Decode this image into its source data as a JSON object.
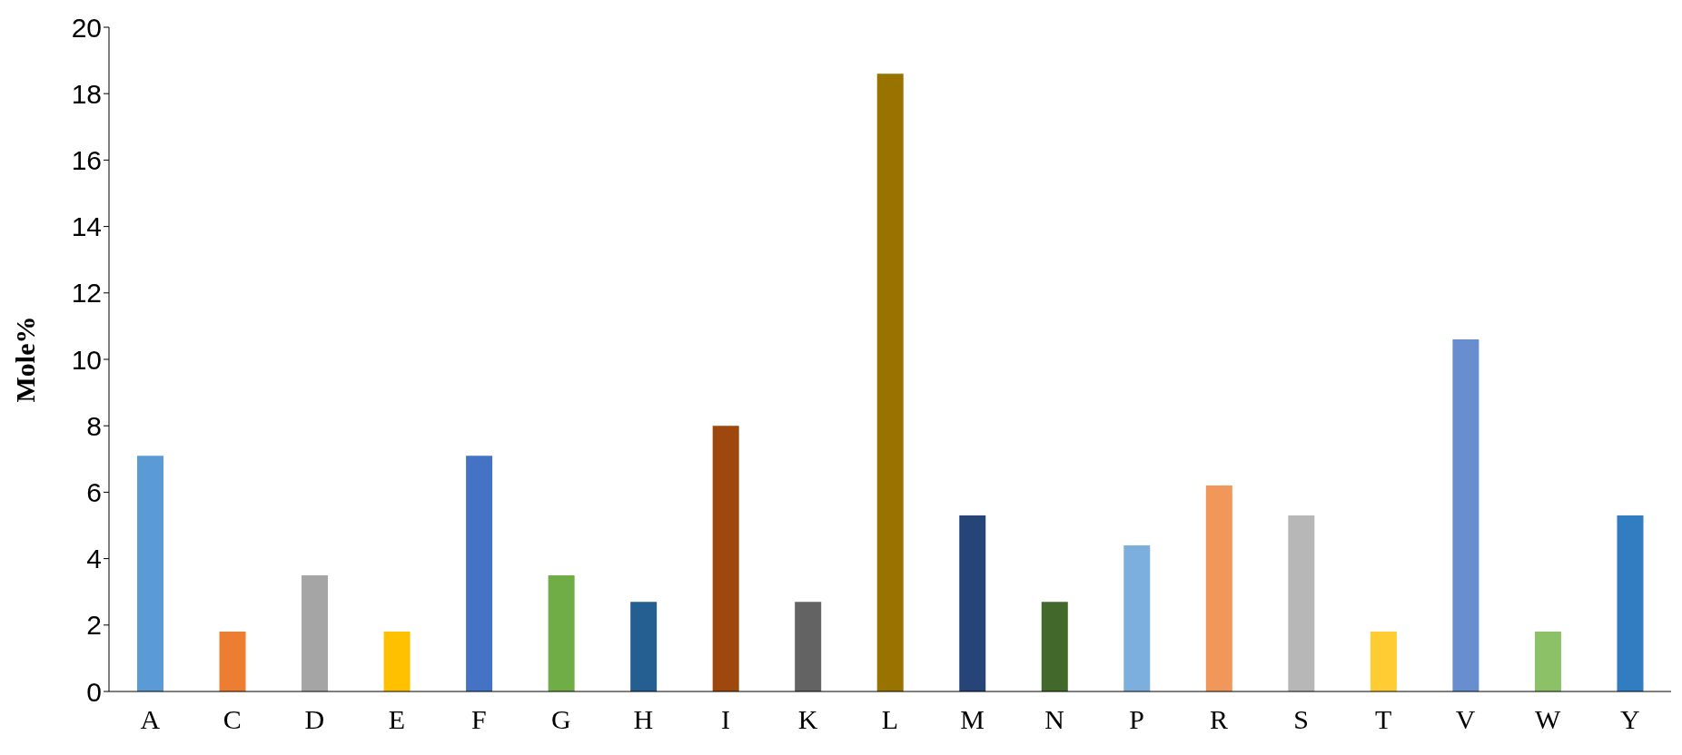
{
  "chart_data": {
    "type": "bar",
    "ylabel": "Mole%",
    "categories": [
      "A",
      "C",
      "D",
      "E",
      "F",
      "G",
      "H",
      "I",
      "K",
      "L",
      "M",
      "N",
      "P",
      "R",
      "S",
      "T",
      "V",
      "W",
      "Y"
    ],
    "values": [
      7.1,
      1.8,
      3.5,
      1.8,
      7.1,
      3.5,
      2.7,
      8.0,
      2.7,
      18.6,
      5.3,
      2.7,
      4.4,
      6.2,
      5.3,
      1.8,
      10.6,
      1.8,
      5.3
    ],
    "colors": [
      "#5b9bd5",
      "#ed7d31",
      "#a5a5a5",
      "#ffc000",
      "#4472c4",
      "#70ad47",
      "#255e91",
      "#9e480e",
      "#636363",
      "#997300",
      "#264478",
      "#43682b",
      "#7cafdd",
      "#f1975a",
      "#b7b7b7",
      "#ffcd33",
      "#698ed0",
      "#8cc168",
      "#327dc2"
    ],
    "ylim": [
      0,
      20
    ],
    "yticks": [
      0,
      2,
      4,
      6,
      8,
      10,
      12,
      14,
      16,
      18,
      20
    ],
    "grid": false,
    "legend": false
  }
}
